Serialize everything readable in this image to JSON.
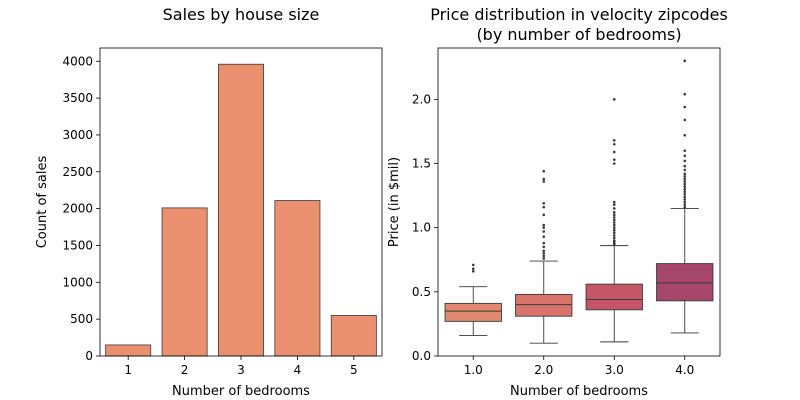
{
  "chart_data": [
    {
      "type": "bar",
      "title": "Sales by house size",
      "xlabel": "Number of bedrooms",
      "ylabel": "Count of sales",
      "categories": [
        "1",
        "2",
        "3",
        "4",
        "5"
      ],
      "values": [
        150,
        2010,
        3960,
        2110,
        550
      ],
      "ylim": [
        0,
        4180
      ],
      "yticks": [
        0,
        500,
        1000,
        1500,
        2000,
        2500,
        3000,
        3500,
        4000
      ],
      "color": "#EB906E",
      "grid": false
    },
    {
      "type": "box",
      "title": "Price distribution in velocity zipcodes",
      "subtitle": "(by number of bedrooms)",
      "xlabel": "Number of bedrooms",
      "ylabel": "Price (in $mil)",
      "categories": [
        "1.0",
        "2.0",
        "3.0",
        "4.0"
      ],
      "ylim": [
        0,
        2.4
      ],
      "yticks": [
        0.0,
        0.5,
        1.0,
        1.5,
        2.0
      ],
      "ytick_labels": [
        "0.0",
        "0.5",
        "1.0",
        "1.5",
        "2.0"
      ],
      "grid": false,
      "boxes": [
        {
          "color": "#E0896E",
          "whisker_low": 0.16,
          "q1": 0.27,
          "median": 0.35,
          "q3": 0.41,
          "whisker_high": 0.54,
          "outliers": [
            0.66,
            0.68,
            0.71
          ]
        },
        {
          "color": "#D8746C",
          "whisker_low": 0.1,
          "q1": 0.31,
          "median": 0.4,
          "q3": 0.48,
          "whisker_high": 0.74,
          "outliers": [
            0.76,
            0.78,
            0.8,
            0.82,
            0.85,
            0.88,
            0.93,
            0.97,
            1.0,
            1.02,
            1.1,
            1.16,
            1.19,
            1.36,
            1.38,
            1.44
          ]
        },
        {
          "color": "#C55667",
          "whisker_low": 0.11,
          "q1": 0.36,
          "median": 0.44,
          "q3": 0.56,
          "whisker_high": 0.86,
          "outliers": [
            0.87,
            0.88,
            0.89,
            0.9,
            0.92,
            0.94,
            0.96,
            0.98,
            1.0,
            1.02,
            1.04,
            1.06,
            1.08,
            1.1,
            1.12,
            1.15,
            1.18,
            1.2,
            1.5,
            1.53,
            1.59,
            1.65,
            1.68,
            2.0
          ]
        },
        {
          "color": "#A6466A",
          "whisker_low": 0.18,
          "q1": 0.43,
          "median": 0.57,
          "q3": 0.72,
          "whisker_high": 1.15,
          "outliers": [
            1.16,
            1.18,
            1.2,
            1.22,
            1.24,
            1.26,
            1.28,
            1.3,
            1.32,
            1.34,
            1.36,
            1.38,
            1.4,
            1.42,
            1.45,
            1.48,
            1.52,
            1.56,
            1.6,
            1.72,
            1.84,
            1.94,
            2.04,
            2.3
          ]
        }
      ]
    }
  ]
}
